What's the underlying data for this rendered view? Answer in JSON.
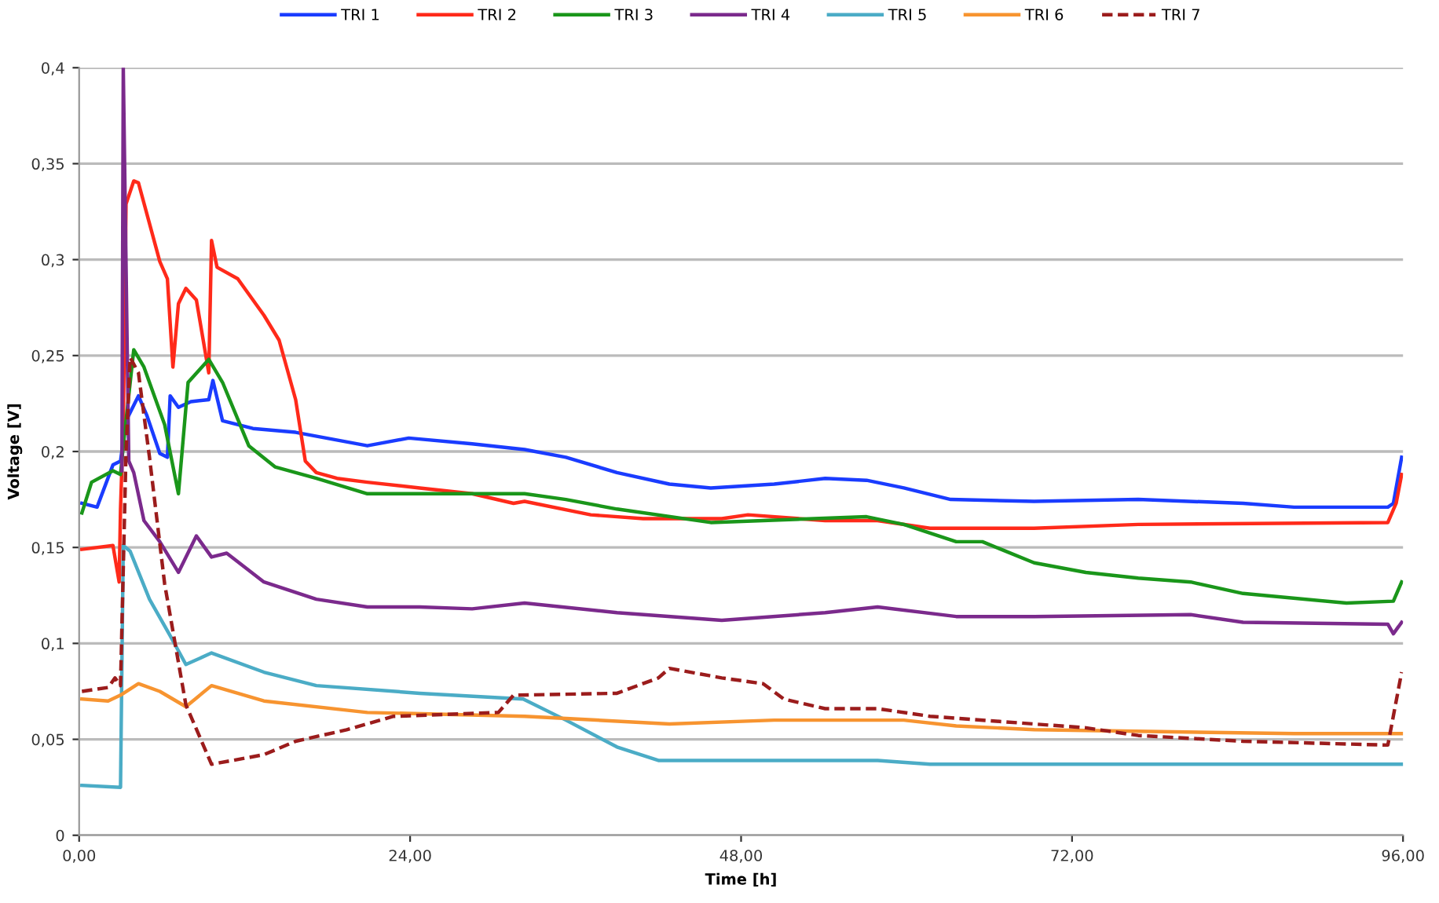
{
  "chart_data": {
    "type": "line",
    "xlabel": "Time [h]",
    "ylabel": "Voltage [V]",
    "xlim": [
      0,
      96
    ],
    "xticks": [
      {
        "value": 0,
        "label": "0,00"
      },
      {
        "value": 24,
        "label": "24,00"
      },
      {
        "value": 48,
        "label": "48,00"
      },
      {
        "value": 72,
        "label": "72,00"
      },
      {
        "value": 96,
        "label": "96,00"
      }
    ],
    "ylim": [
      0,
      0.4
    ],
    "yticks": [
      {
        "value": 0,
        "label": "0"
      },
      {
        "value": 0.05,
        "label": "0,05"
      },
      {
        "value": 0.1,
        "label": "0,1"
      },
      {
        "value": 0.15,
        "label": "0,15"
      },
      {
        "value": 0.2,
        "label": "0,2"
      },
      {
        "value": 0.25,
        "label": "0,25"
      },
      {
        "value": 0.3,
        "label": "0,3"
      },
      {
        "value": 0.35,
        "label": "0,35"
      },
      {
        "value": 0.4,
        "label": "0,4"
      }
    ],
    "grid": "y",
    "legend": "top",
    "marker": "none",
    "line_style": "solid",
    "series": [
      {
        "name": "TRI 1",
        "color": "#1a3cff",
        "x": [
          0.2,
          1.3,
          2.45,
          3.0,
          3.4,
          4.3,
          4.9,
          5.85,
          6.4,
          6.6,
          7.2,
          8.1,
          9.4,
          9.7,
          10.4,
          12.6,
          15.7,
          20.9,
          23.9,
          28.5,
          32.3,
          35.3,
          39.0,
          42.8,
          45.8,
          50.4,
          54.1,
          57.1,
          59.8,
          63.2,
          69.25,
          76.8,
          84.4,
          88.1,
          94.9,
          95.3,
          95.9
        ],
        "values": [
          0.173,
          0.171,
          0.193,
          0.195,
          0.216,
          0.229,
          0.219,
          0.199,
          0.197,
          0.229,
          0.223,
          0.226,
          0.227,
          0.237,
          0.216,
          0.212,
          0.21,
          0.203,
          0.207,
          0.204,
          0.201,
          0.197,
          0.189,
          0.183,
          0.181,
          0.183,
          0.186,
          0.185,
          0.181,
          0.175,
          0.174,
          0.175,
          0.173,
          0.171,
          0.171,
          0.173,
          0.197
        ]
      },
      {
        "name": "TRI 2",
        "color": "#ff2a1a",
        "x": [
          0.2,
          2.45,
          2.9,
          3.0,
          3.2,
          3.4,
          3.96,
          4.3,
          5.85,
          6.4,
          6.8,
          7.2,
          7.74,
          8.5,
          9.4,
          9.6,
          10.0,
          11.5,
          13.4,
          14.5,
          15.7,
          16.4,
          17.2,
          18.7,
          20.9,
          24.7,
          28.5,
          31.5,
          32.3,
          37.1,
          40.9,
          46.6,
          48.5,
          54.1,
          57.9,
          61.7,
          69.25,
          76.8,
          94.9,
          95.5,
          95.9
        ],
        "values": [
          0.149,
          0.151,
          0.132,
          0.17,
          0.214,
          0.329,
          0.341,
          0.34,
          0.299,
          0.29,
          0.244,
          0.277,
          0.285,
          0.279,
          0.241,
          0.31,
          0.296,
          0.29,
          0.271,
          0.258,
          0.227,
          0.195,
          0.189,
          0.186,
          0.184,
          0.181,
          0.178,
          0.173,
          0.174,
          0.167,
          0.165,
          0.165,
          0.167,
          0.164,
          0.164,
          0.16,
          0.16,
          0.162,
          0.163,
          0.173,
          0.188
        ]
      },
      {
        "name": "TRI 3",
        "color": "#1a961a",
        "x": [
          0.2,
          0.9,
          2.45,
          3.0,
          3.2,
          3.96,
          4.7,
          6.2,
          7.2,
          7.9,
          9.4,
          10.4,
          12.3,
          14.2,
          17.2,
          20.9,
          24.7,
          32.3,
          35.3,
          39.0,
          45.8,
          57.1,
          59.8,
          63.6,
          65.5,
          69.25,
          73.0,
          76.8,
          80.6,
          84.4,
          91.9,
          95.3,
          95.9
        ],
        "values": [
          0.168,
          0.184,
          0.19,
          0.188,
          0.203,
          0.253,
          0.244,
          0.214,
          0.178,
          0.236,
          0.248,
          0.236,
          0.203,
          0.192,
          0.186,
          0.178,
          0.178,
          0.178,
          0.175,
          0.17,
          0.163,
          0.166,
          0.162,
          0.153,
          0.153,
          0.142,
          0.137,
          0.134,
          0.132,
          0.126,
          0.121,
          0.122,
          0.132
        ]
      },
      {
        "name": "TRI 4",
        "color": "#7b2a8c",
        "x": [
          3.1,
          3.2,
          3.6,
          3.96,
          4.7,
          5.85,
          7.2,
          8.5,
          9.6,
          10.7,
          13.4,
          17.2,
          20.9,
          24.7,
          28.5,
          32.3,
          39.0,
          46.6,
          54.1,
          57.9,
          63.6,
          69.25,
          80.6,
          84.4,
          94.9,
          95.3,
          95.9
        ],
        "values": [
          0.19,
          0.4,
          0.195,
          0.189,
          0.164,
          0.153,
          0.137,
          0.156,
          0.145,
          0.147,
          0.132,
          0.123,
          0.119,
          0.119,
          0.118,
          0.121,
          0.116,
          0.112,
          0.116,
          0.119,
          0.114,
          0.114,
          0.115,
          0.111,
          0.11,
          0.105,
          0.111
        ]
      },
      {
        "name": "TRI 5",
        "color": "#4bacc6",
        "x": [
          0.2,
          3.0,
          3.2,
          3.7,
          5.1,
          6.6,
          7.74,
          9.6,
          13.4,
          17.2,
          24.7,
          32.2,
          35.3,
          39.0,
          42.0,
          57.9,
          61.7,
          95.9
        ],
        "values": [
          0.026,
          0.025,
          0.151,
          0.148,
          0.123,
          0.104,
          0.089,
          0.095,
          0.085,
          0.078,
          0.074,
          0.071,
          0.06,
          0.046,
          0.039,
          0.039,
          0.037,
          0.037
        ]
      },
      {
        "name": "TRI 6",
        "color": "#f79430",
        "x": [
          0.2,
          2.1,
          3.0,
          4.3,
          5.85,
          7.74,
          9.6,
          13.4,
          20.9,
          32.3,
          42.8,
          50.4,
          59.8,
          63.6,
          69.25,
          88.1,
          95.9
        ],
        "values": [
          0.071,
          0.07,
          0.073,
          0.079,
          0.075,
          0.067,
          0.078,
          0.07,
          0.064,
          0.062,
          0.058,
          0.06,
          0.06,
          0.057,
          0.055,
          0.053,
          0.053
        ]
      },
      {
        "name": "TRI 7",
        "color": "#9b1c1c",
        "line_style": "dashed",
        "x": [
          0.2,
          2.1,
          2.6,
          3.0,
          3.4,
          3.7,
          4.3,
          5.1,
          6.2,
          7.74,
          9.6,
          13.4,
          15.7,
          19.4,
          22.8,
          30.4,
          31.5,
          39.0,
          42.0,
          42.8,
          46.6,
          49.6,
          51.1,
          54.1,
          57.9,
          61.7,
          69.25,
          73.0,
          76.8,
          84.4,
          94.9,
          95.9
        ],
        "values": [
          0.075,
          0.077,
          0.082,
          0.078,
          0.2,
          0.249,
          0.241,
          0.197,
          0.131,
          0.068,
          0.037,
          0.042,
          0.049,
          0.055,
          0.062,
          0.064,
          0.073,
          0.074,
          0.082,
          0.087,
          0.082,
          0.079,
          0.071,
          0.066,
          0.066,
          0.062,
          0.058,
          0.056,
          0.052,
          0.049,
          0.047,
          0.085
        ]
      }
    ]
  }
}
